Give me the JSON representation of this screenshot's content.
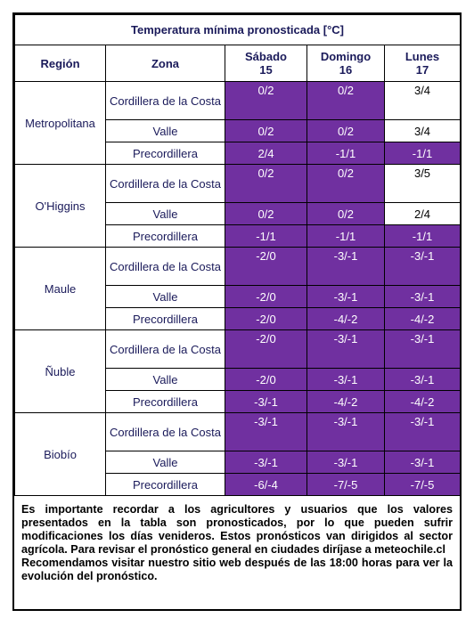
{
  "title": "Temperatura mínima pronosticada [°C]",
  "headers": {
    "region": "Región",
    "zona": "Zona",
    "days": [
      {
        "name": "Sábado",
        "num": "15"
      },
      {
        "name": "Domingo",
        "num": "16"
      },
      {
        "name": "Lunes",
        "num": "17"
      }
    ]
  },
  "colors": {
    "highlight": "#7030a0",
    "plain": "#ffffff"
  },
  "regions": [
    {
      "name": "Metropolitana",
      "rows": [
        {
          "zona": "Cordillera de la Costa",
          "values": [
            "0/2",
            "0/2",
            "3/4"
          ],
          "highlight": [
            true,
            true,
            false
          ]
        },
        {
          "zona": "Valle",
          "values": [
            "0/2",
            "0/2",
            "3/4"
          ],
          "highlight": [
            true,
            true,
            false
          ]
        },
        {
          "zona": "Precordillera",
          "values": [
            "2/4",
            "-1/1",
            "-1/1"
          ],
          "highlight": [
            true,
            true,
            true
          ]
        }
      ]
    },
    {
      "name": "O'Higgins",
      "rows": [
        {
          "zona": "Cordillera de la Costa",
          "values": [
            "0/2",
            "0/2",
            "3/5"
          ],
          "highlight": [
            true,
            true,
            false
          ]
        },
        {
          "zona": "Valle",
          "values": [
            "0/2",
            "0/2",
            "2/4"
          ],
          "highlight": [
            true,
            true,
            false
          ]
        },
        {
          "zona": "Precordillera",
          "values": [
            "-1/1",
            "-1/1",
            "-1/1"
          ],
          "highlight": [
            true,
            true,
            true
          ]
        }
      ]
    },
    {
      "name": "Maule",
      "rows": [
        {
          "zona": "Cordillera de la Costa",
          "values": [
            "-2/0",
            "-3/-1",
            "-3/-1"
          ],
          "highlight": [
            true,
            true,
            true
          ]
        },
        {
          "zona": "Valle",
          "values": [
            "-2/0",
            "-3/-1",
            "-3/-1"
          ],
          "highlight": [
            true,
            true,
            true
          ]
        },
        {
          "zona": "Precordillera",
          "values": [
            "-2/0",
            "-4/-2",
            "-4/-2"
          ],
          "highlight": [
            true,
            true,
            true
          ]
        }
      ]
    },
    {
      "name": "Ñuble",
      "rows": [
        {
          "zona": "Cordillera de la Costa",
          "values": [
            "-2/0",
            "-3/-1",
            "-3/-1"
          ],
          "highlight": [
            true,
            true,
            true
          ]
        },
        {
          "zona": "Valle",
          "values": [
            "-2/0",
            "-3/-1",
            "-3/-1"
          ],
          "highlight": [
            true,
            true,
            true
          ]
        },
        {
          "zona": "Precordillera",
          "values": [
            "-3/-1",
            "-4/-2",
            "-4/-2"
          ],
          "highlight": [
            true,
            true,
            true
          ]
        }
      ]
    },
    {
      "name": "Biobío",
      "rows": [
        {
          "zona": "Cordillera de la Costa",
          "values": [
            "-3/-1",
            "-3/-1",
            "-3/-1"
          ],
          "highlight": [
            true,
            true,
            true
          ]
        },
        {
          "zona": "Valle",
          "values": [
            "-3/-1",
            "-3/-1",
            "-3/-1"
          ],
          "highlight": [
            true,
            true,
            true
          ]
        },
        {
          "zona": "Precordillera",
          "values": [
            "-6/-4",
            "-7/-5",
            "-7/-5"
          ],
          "highlight": [
            true,
            true,
            true
          ]
        }
      ]
    }
  ],
  "note": {
    "paragraph1": "Es importante recordar a los agricultores y usuarios que los valores presentados en la tabla son pronosticados, por lo que pueden sufrir modificaciones los días venideros. Estos pronósticos van dirigidos al sector agrícola. Para revisar el pronóstico general en ciudades diríjase a meteochile.cl",
    "paragraph2": " Recomendamos visitar nuestro sitio web después de las 18:00 horas para ver la evolución del pronóstico."
  }
}
